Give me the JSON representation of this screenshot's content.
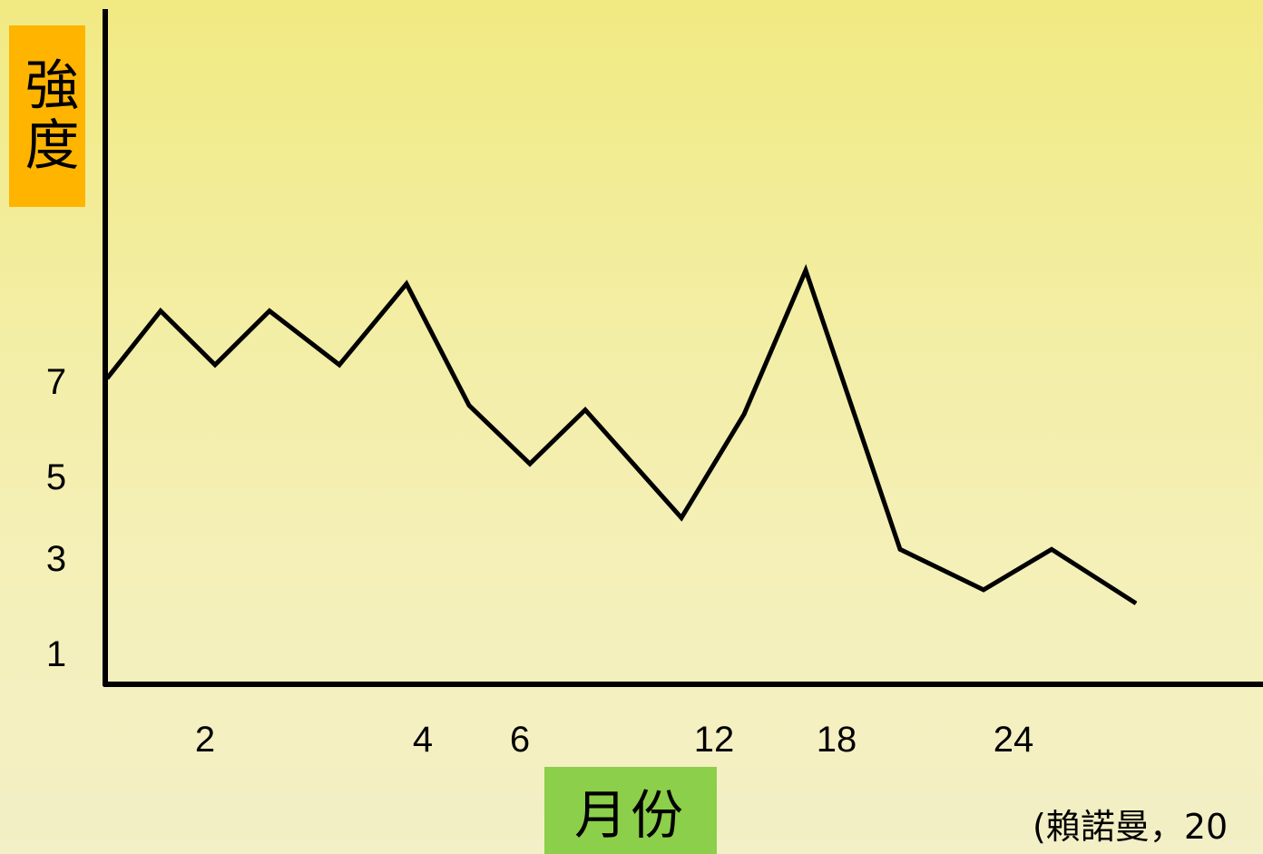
{
  "chart_data": {
    "type": "line",
    "ylabel": "強度",
    "xlabel": "月份",
    "x_tick_labels": [
      "2",
      "4",
      "6",
      "12",
      "18",
      "24"
    ],
    "y_tick_labels": [
      "7",
      "5",
      "3",
      "1"
    ],
    "series": [
      {
        "values": [
          6.8,
          8.3,
          7.1,
          8.3,
          7.1,
          8.9,
          6.2,
          4.9,
          6.1,
          3.7,
          6.0,
          9.2,
          3.0,
          2.1,
          3.0,
          1.8
        ]
      }
    ],
    "ylim": [
      0,
      14
    ],
    "grid": false,
    "line_color": "#000000"
  },
  "citation": "(賴諾曼，20"
}
